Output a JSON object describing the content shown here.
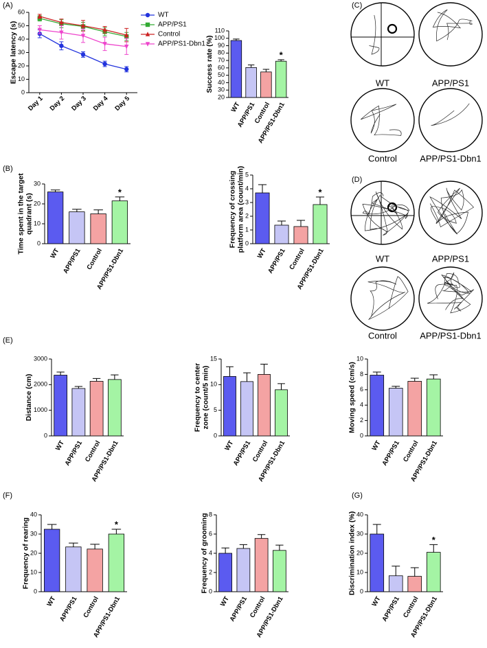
{
  "panel_labels": [
    "(A)",
    "(B)",
    "(C)",
    "(D)",
    "(E)",
    "(F)",
    "(G)"
  ],
  "trajectories_c": [
    "WT",
    "APP/PS1",
    "Control",
    "APP/PS1-Dbn1"
  ],
  "trajectories_d": [
    "WT",
    "APP/PS1",
    "Control",
    "APP/PS1-Dbn1"
  ],
  "chart_data": [
    {
      "type": "line",
      "ylabel": [
        "Escape latency (s)"
      ],
      "categories": [
        "Day 1",
        "Day 2",
        "Day 3",
        "Day 4",
        "Day 5"
      ],
      "ylim": [
        0,
        60
      ],
      "yticks": [
        0,
        10,
        20,
        30,
        40,
        50,
        60
      ],
      "series": [
        {
          "name": "WT",
          "color": "#2233dd",
          "marker": "circle",
          "values": [
            44,
            35,
            28.5,
            21.5,
            17.5
          ],
          "errors": [
            3,
            3,
            2,
            2,
            2
          ]
        },
        {
          "name": "APP/PS1",
          "color": "#33aa33",
          "marker": "square",
          "values": [
            55.5,
            51.5,
            49.5,
            45.5,
            42
          ],
          "errors": [
            2,
            3,
            3,
            3,
            3
          ]
        },
        {
          "name": "Control",
          "color": "#cc2222",
          "marker": "triangle",
          "values": [
            57,
            52.5,
            50,
            47,
            43
          ],
          "errors": [
            1.5,
            2.5,
            4,
            2.5,
            5
          ]
        },
        {
          "name": "APP/PS1-Dbn1",
          "color": "#ee44cc",
          "marker": "triangle-down",
          "values": [
            47,
            45,
            42.5,
            36.5,
            34.5
          ],
          "errors": [
            3,
            5,
            5,
            5,
            6
          ]
        }
      ]
    },
    {
      "type": "bar",
      "ylabel": [
        "Success rate (%)"
      ],
      "categories": [
        "WT",
        "APP/PS1",
        "Control",
        "APP/PS1-Dbn1"
      ],
      "colors": [
        "#5b5bf0",
        "#c5c5f5",
        "#f4a3a3",
        "#a4f4a4"
      ],
      "values": [
        97,
        60.5,
        54.5,
        69
      ],
      "errors": [
        2,
        3.5,
        3.5,
        2
      ],
      "significance": [
        null,
        null,
        null,
        "*"
      ],
      "ylim": [
        20,
        110
      ],
      "yticks": [
        20,
        30,
        40,
        50,
        60,
        70,
        80,
        90,
        100,
        110
      ]
    },
    {
      "type": "bar",
      "ylabel": [
        "Time spent in the target",
        "quadrant (s)"
      ],
      "categories": [
        "WT",
        "APP/PS1",
        "Control",
        "APP/PS1-Dbn1"
      ],
      "colors": [
        "#5b5bf0",
        "#c5c5f5",
        "#f4a3a3",
        "#a4f4a4"
      ],
      "values": [
        26,
        16,
        15,
        21.5
      ],
      "errors": [
        1,
        1.3,
        2,
        2
      ],
      "significance": [
        null,
        null,
        null,
        "*"
      ],
      "ylim": [
        0,
        30
      ],
      "yticks": [
        0,
        10,
        20,
        30
      ]
    },
    {
      "type": "bar",
      "ylabel": [
        "Frequency of crossing",
        "platform area (count/min)"
      ],
      "categories": [
        "WT",
        "APP/PS1",
        "Control",
        "APP/PS1-Dbn1"
      ],
      "colors": [
        "#5b5bf0",
        "#c5c5f5",
        "#f4a3a3",
        "#a4f4a4"
      ],
      "values": [
        3.7,
        1.35,
        1.25,
        2.85
      ],
      "errors": [
        0.6,
        0.3,
        0.45,
        0.55
      ],
      "significance": [
        null,
        null,
        null,
        "*"
      ],
      "ylim": [
        0,
        5
      ],
      "yticks": [
        0,
        1,
        2,
        3,
        4,
        5
      ]
    },
    {
      "type": "bar",
      "ylabel": [
        "Distance (cm)"
      ],
      "categories": [
        "WT",
        "APP/PS1",
        "Control",
        "APP/PS1-Dbn1"
      ],
      "colors": [
        "#5b5bf0",
        "#c5c5f5",
        "#f4a3a3",
        "#a4f4a4"
      ],
      "values": [
        2370,
        1850,
        2130,
        2200
      ],
      "errors": [
        120,
        80,
        110,
        180
      ],
      "significance": [
        null,
        null,
        null,
        null
      ],
      "ylim": [
        0,
        3000
      ],
      "yticks": [
        0,
        1000,
        2000,
        3000
      ]
    },
    {
      "type": "bar",
      "ylabel": [
        "Frequency to center",
        "zone (count/5 min)"
      ],
      "categories": [
        "WT",
        "APP/PS1",
        "Control",
        "APP/PS1-Dbn1"
      ],
      "colors": [
        "#5b5bf0",
        "#c5c5f5",
        "#f4a3a3",
        "#a4f4a4"
      ],
      "values": [
        11.6,
        10.6,
        12,
        9
      ],
      "errors": [
        1.9,
        1.7,
        2,
        1.2
      ],
      "significance": [
        null,
        null,
        null,
        null
      ],
      "ylim": [
        0,
        15
      ],
      "yticks": [
        0,
        5,
        10,
        15
      ]
    },
    {
      "type": "bar",
      "ylabel": [
        "Moving speed (cm/s)"
      ],
      "categories": [
        "WT",
        "APP/PS1",
        "Control",
        "APP/PS1-Dbn1"
      ],
      "colors": [
        "#5b5bf0",
        "#c5c5f5",
        "#f4a3a3",
        "#a4f4a4"
      ],
      "values": [
        7.9,
        6.2,
        7.1,
        7.4
      ],
      "errors": [
        0.4,
        0.25,
        0.4,
        0.55
      ],
      "significance": [
        null,
        null,
        null,
        null
      ],
      "ylim": [
        0,
        10
      ],
      "yticks": [
        0,
        2,
        4,
        6,
        8,
        10
      ]
    },
    {
      "type": "bar",
      "ylabel": [
        "Frequency of rearing"
      ],
      "categories": [
        "WT",
        "APP/PS1",
        "Control",
        "APP/PS1-Dbn1"
      ],
      "colors": [
        "#5b5bf0",
        "#c5c5f5",
        "#f4a3a3",
        "#a4f4a4"
      ],
      "values": [
        32.5,
        23.3,
        22.2,
        30
      ],
      "errors": [
        2.5,
        2,
        2.5,
        2.5
      ],
      "significance": [
        null,
        null,
        null,
        "*"
      ],
      "ylim": [
        0,
        40
      ],
      "yticks": [
        0,
        10,
        20,
        30,
        40
      ]
    },
    {
      "type": "bar",
      "ylabel": [
        "Frequency of grooming"
      ],
      "categories": [
        "WT",
        "APP/PS1",
        "Control",
        "APP/PS1-Dbn1"
      ],
      "colors": [
        "#5b5bf0",
        "#c5c5f5",
        "#f4a3a3",
        "#a4f4a4"
      ],
      "values": [
        4.0,
        4.5,
        5.55,
        4.3
      ],
      "errors": [
        0.55,
        0.4,
        0.4,
        0.55
      ],
      "significance": [
        null,
        null,
        null,
        null
      ],
      "ylim": [
        0,
        8
      ],
      "yticks": [
        0,
        2,
        4,
        6,
        8
      ]
    },
    {
      "type": "bar",
      "ylabel": [
        "Discrimination index (%)"
      ],
      "categories": [
        "WT",
        "APP/PS1",
        "Control",
        "APP/PS1-Dbn1"
      ],
      "colors": [
        "#5b5bf0",
        "#c5c5f5",
        "#f4a3a3",
        "#a4f4a4"
      ],
      "values": [
        30,
        8.3,
        8,
        20.5
      ],
      "errors": [
        5,
        5,
        4.5,
        4
      ],
      "significance": [
        null,
        null,
        null,
        "*"
      ],
      "ylim": [
        0,
        40
      ],
      "yticks": [
        0,
        10,
        20,
        30,
        40
      ]
    }
  ]
}
